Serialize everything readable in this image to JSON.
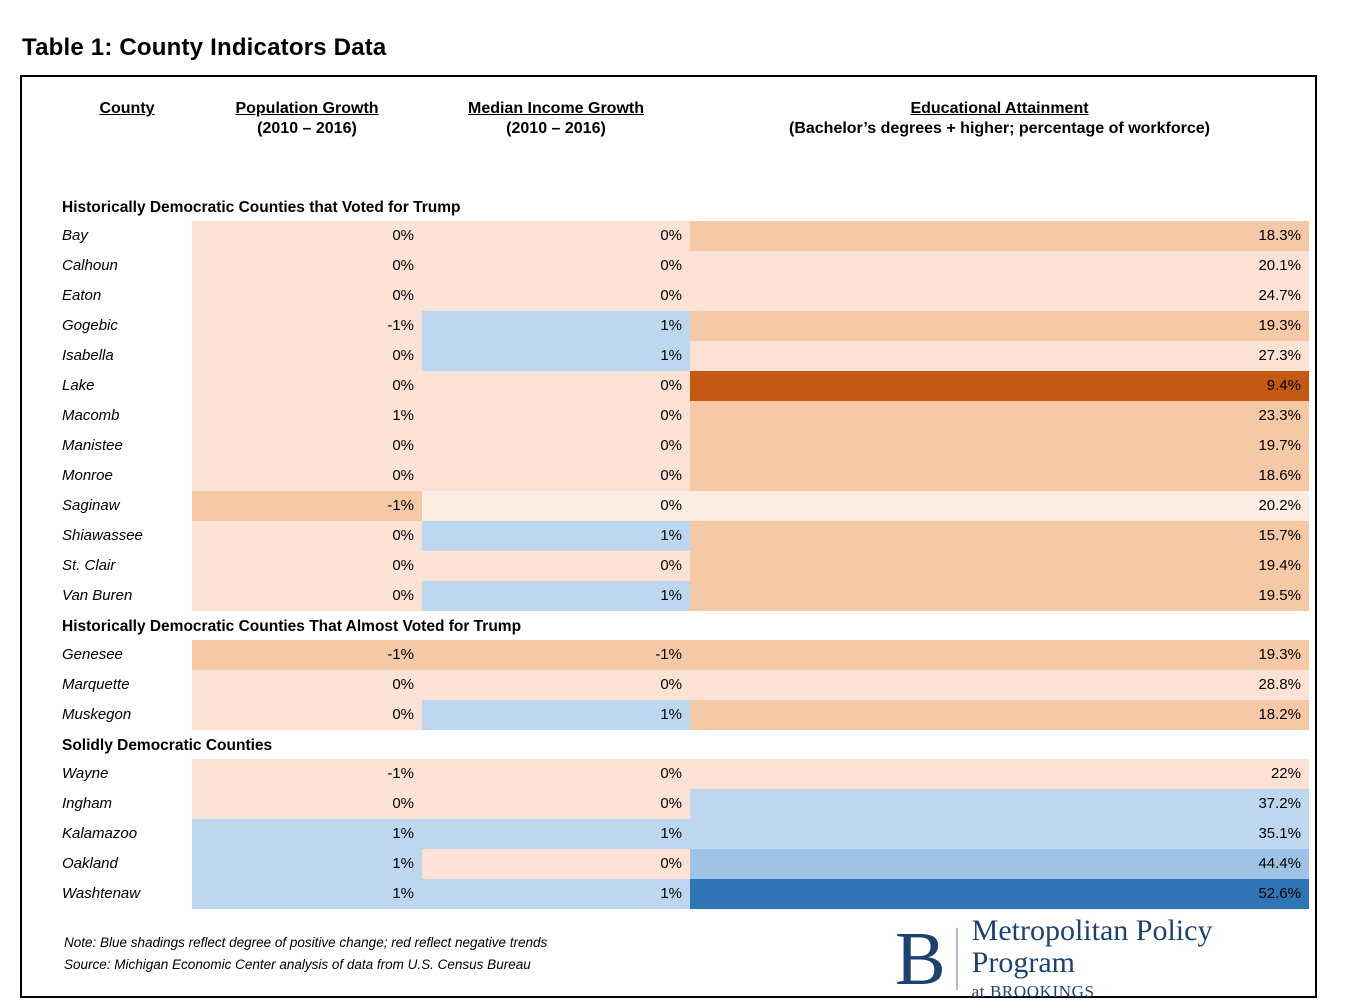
{
  "page_title": "Table 1: County Indicators Data",
  "table": {
    "columns": {
      "county": {
        "label": "County"
      },
      "population": {
        "label": "Population Growth",
        "sub": "(2010 – 2016)"
      },
      "income": {
        "label": "Median Income Growth",
        "sub": "(2010 – 2016)"
      },
      "education": {
        "label": "Educational Attainment",
        "sub": "(Bachelor’s degrees + higher; percentage of workforce)"
      }
    },
    "shading_palette": {
      "peach": "#FBE2D4",
      "peach_light": "#FCEDE3",
      "orange_medium": "#F6C9A6",
      "orange_dark": "#C45A11",
      "blue_light": "#BDD7EE",
      "blue_medium": "#9DC3E6",
      "blue_dark": "#2E75B6"
    },
    "sections": [
      {
        "label": "Historically Democratic Counties that Voted for Trump",
        "rows": [
          {
            "county": "Bay",
            "population": "0%",
            "population_shade": "peach",
            "income": "0%",
            "income_shade": "peach",
            "education": "18.3%",
            "education_shade": "orange_medium"
          },
          {
            "county": "Calhoun",
            "population": "0%",
            "population_shade": "peach",
            "income": "0%",
            "income_shade": "peach",
            "education": "20.1%",
            "education_shade": "peach"
          },
          {
            "county": "Eaton",
            "population": "0%",
            "population_shade": "peach",
            "income": "0%",
            "income_shade": "peach",
            "education": "24.7%",
            "education_shade": "peach"
          },
          {
            "county": "Gogebic",
            "population": "-1%",
            "population_shade": "peach",
            "income": "1%",
            "income_shade": "blue_light",
            "education": "19.3%",
            "education_shade": "orange_medium"
          },
          {
            "county": "Isabella",
            "population": "0%",
            "population_shade": "peach",
            "income": "1%",
            "income_shade": "blue_light",
            "education": "27.3%",
            "education_shade": "peach"
          },
          {
            "county": "Lake",
            "population": "0%",
            "population_shade": "peach",
            "income": "0%",
            "income_shade": "peach",
            "education": "9.4%",
            "education_shade": "orange_dark"
          },
          {
            "county": "Macomb",
            "population": "1%",
            "population_shade": "peach",
            "income": "0%",
            "income_shade": "peach",
            "education": "23.3%",
            "education_shade": "orange_medium"
          },
          {
            "county": "Manistee",
            "population": "0%",
            "population_shade": "peach",
            "income": "0%",
            "income_shade": "peach",
            "education": "19.7%",
            "education_shade": "orange_medium"
          },
          {
            "county": "Monroe",
            "population": "0%",
            "population_shade": "peach",
            "income": "0%",
            "income_shade": "peach",
            "education": "18.6%",
            "education_shade": "orange_medium"
          },
          {
            "county": "Saginaw",
            "population": "-1%",
            "population_shade": "orange_medium",
            "income": "0%",
            "income_shade": "peach_light",
            "education": "20.2%",
            "education_shade": "peach_light"
          },
          {
            "county": "Shiawassee",
            "population": "0%",
            "population_shade": "peach",
            "income": "1%",
            "income_shade": "blue_light",
            "education": "15.7%",
            "education_shade": "orange_medium"
          },
          {
            "county": "St. Clair",
            "population": "0%",
            "population_shade": "peach",
            "income": "0%",
            "income_shade": "peach",
            "education": "19.4%",
            "education_shade": "orange_medium"
          },
          {
            "county": "Van Buren",
            "population": "0%",
            "population_shade": "peach",
            "income": "1%",
            "income_shade": "blue_light",
            "education": "19.5%",
            "education_shade": "orange_medium"
          }
        ]
      },
      {
        "label": "Historically Democratic Counties That Almost Voted for Trump",
        "rows": [
          {
            "county": "Genesee",
            "population": "-1%",
            "population_shade": "orange_medium",
            "income": "-1%",
            "income_shade": "orange_medium",
            "education": "19.3%",
            "education_shade": "orange_medium"
          },
          {
            "county": "Marquette",
            "population": "0%",
            "population_shade": "peach",
            "income": "0%",
            "income_shade": "peach",
            "education": "28.8%",
            "education_shade": "peach"
          },
          {
            "county": "Muskegon",
            "population": "0%",
            "population_shade": "peach",
            "income": "1%",
            "income_shade": "blue_light",
            "education": "18.2%",
            "education_shade": "orange_medium"
          }
        ]
      },
      {
        "label": "Solidly Democratic Counties",
        "rows": [
          {
            "county": "Wayne",
            "population": "-1%",
            "population_shade": "peach",
            "income": "0%",
            "income_shade": "peach",
            "education": "22%",
            "education_shade": "peach"
          },
          {
            "county": "Ingham",
            "population": "0%",
            "population_shade": "peach",
            "income": "0%",
            "income_shade": "peach",
            "education": "37.2%",
            "education_shade": "blue_light"
          },
          {
            "county": "Kalamazoo",
            "population": "1%",
            "population_shade": "blue_light",
            "income": "1%",
            "income_shade": "blue_light",
            "education": "35.1%",
            "education_shade": "blue_light"
          },
          {
            "county": "Oakland",
            "population": "1%",
            "population_shade": "blue_light",
            "income": "0%",
            "income_shade": "peach",
            "education": "44.4%",
            "education_shade": "blue_medium"
          },
          {
            "county": "Washtenaw",
            "population": "1%",
            "population_shade": "blue_light",
            "income": "1%",
            "income_shade": "blue_light",
            "education": "52.6%",
            "education_shade": "blue_dark"
          }
        ]
      }
    ]
  },
  "notes": {
    "note": "Note: Blue shadings reflect degree of positive change; red reflect negative trends",
    "source": "Source: Michigan Economic Center analysis of data from U.S. Census Bureau"
  },
  "logo": {
    "letter": "B",
    "name": "Metropolitan Policy Program",
    "sub": "at BROOKINGS",
    "color": "#1C4273",
    "divider_color": "#AEBDD3"
  }
}
